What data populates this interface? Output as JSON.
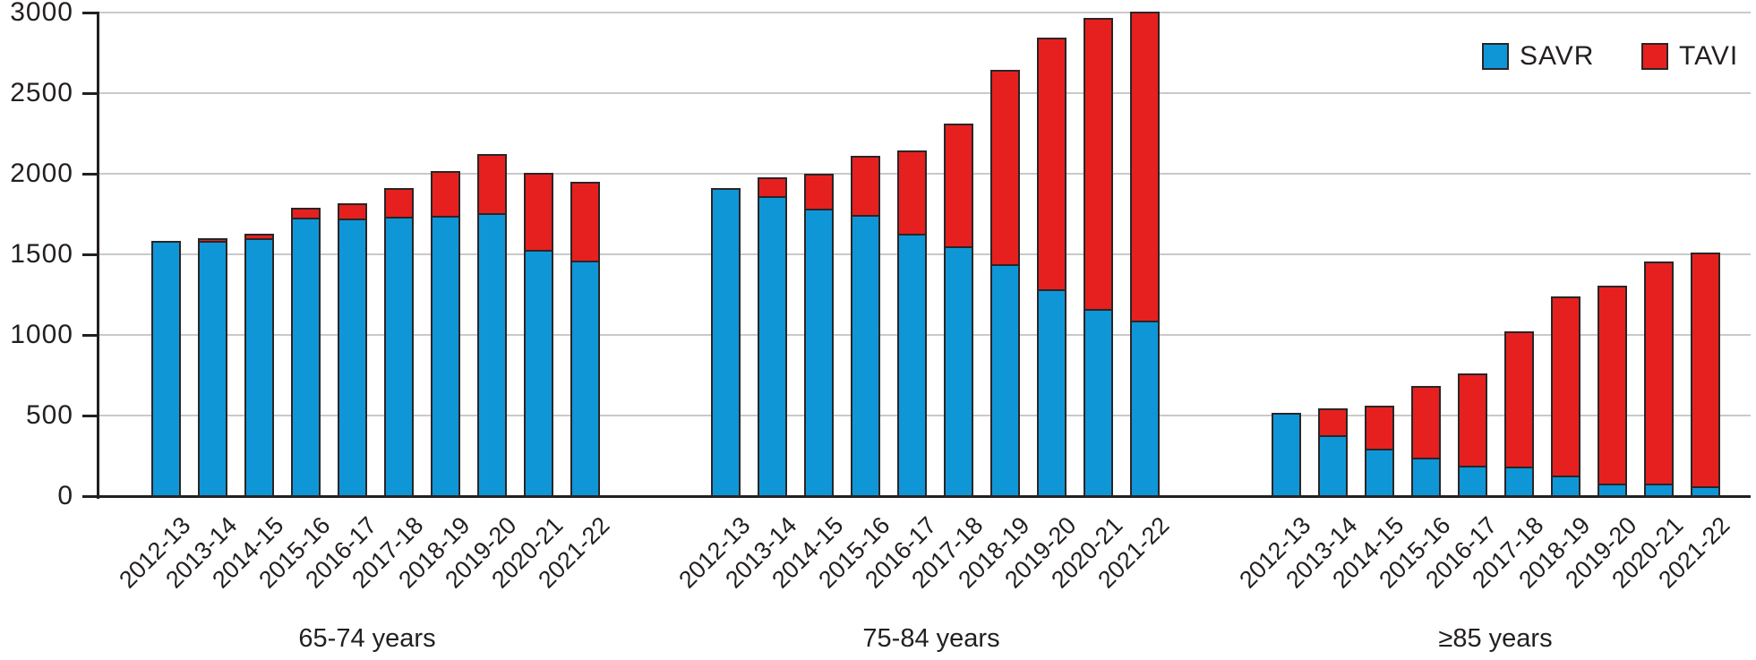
{
  "legend": [
    {
      "label": "SAVR",
      "color": "#0f96d7"
    },
    {
      "label": "TAVI",
      "color": "#e6201f"
    }
  ],
  "y_axis": {
    "tick_labels": [
      "0",
      "500",
      "1000",
      "1500",
      "2000",
      "2500",
      "3000"
    ],
    "tick_values": [
      0,
      500,
      1000,
      1500,
      2000,
      2500,
      3000
    ]
  },
  "chart_data": {
    "type": "bar",
    "stacked": true,
    "grid": true,
    "legend_position": "top-right",
    "ylim": [
      0,
      3000
    ],
    "ylabel": "",
    "xlabel": "",
    "categories": [
      "2012-13",
      "2013-14",
      "2014-15",
      "2015-16",
      "2016-17",
      "2017-18",
      "2018-19",
      "2019-20",
      "2020-21",
      "2021-22"
    ],
    "groups": [
      {
        "label": "65-74 years",
        "series": [
          {
            "name": "SAVR",
            "values": [
              1585,
              1585,
              1600,
              1725,
              1720,
              1735,
              1740,
              1755,
              1530,
              1460
            ]
          },
          {
            "name": "TAVI",
            "values": [
              0,
              25,
              40,
              70,
              105,
              190,
              290,
              380,
              490,
              500
            ]
          }
        ]
      },
      {
        "label": "75-84 years",
        "series": [
          {
            "name": "SAVR",
            "values": [
              1910,
              1860,
              1785,
              1745,
              1630,
              1550,
              1440,
              1285,
              1160,
              1090
            ]
          },
          {
            "name": "TAVI",
            "values": [
              0,
              130,
              230,
              380,
              525,
              770,
              1215,
              1570,
              1815,
              1930
            ]
          }
        ]
      },
      {
        "label": "≥85 years",
        "series": [
          {
            "name": "SAVR",
            "values": [
              515,
              380,
              295,
              240,
              190,
              185,
              125,
              80,
              78,
              60
            ]
          },
          {
            "name": "TAVI",
            "values": [
              0,
              175,
              275,
              455,
              585,
              850,
              1120,
              1240,
              1390,
              1460
            ]
          }
        ]
      }
    ]
  }
}
